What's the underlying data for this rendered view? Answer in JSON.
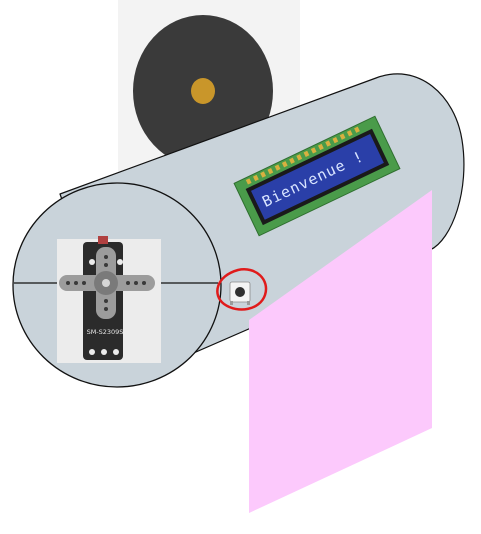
{
  "lcd": {
    "text": "Bienvenue !"
  },
  "servo": {
    "model": "SM-S2309S"
  },
  "colors": {
    "cylinder_fill": "#c9d3da",
    "cylinder_stroke": "#111111",
    "flap": "#fcc9fc",
    "speaker_body": "#3a3a3a",
    "speaker_center": "#c9962a",
    "lcd_board": "#4a9b4a",
    "lcd_screen": "#2a3fa8",
    "button_highlight": "#e01b1b"
  },
  "icons": {
    "speaker": "speaker-icon",
    "servo": "servo-motor-icon",
    "button": "push-button-icon",
    "lcd": "lcd-display-icon"
  }
}
